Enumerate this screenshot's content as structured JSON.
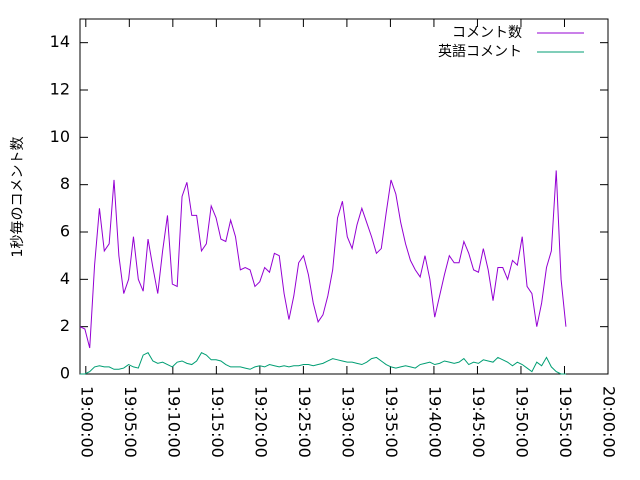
{
  "chart_data": {
    "type": "line",
    "ylabel": "1秒毎のコメント数",
    "x": [
      -40,
      -6.5,
      27,
      60.5,
      94,
      127.5,
      161,
      194.5,
      228,
      261.5,
      295,
      328.5,
      362,
      395.5,
      429,
      462.5,
      496,
      529.5,
      563,
      596.5,
      630,
      663.5,
      697,
      730.5,
      764,
      797.5,
      831,
      864.5,
      898,
      931.5,
      965,
      998.5,
      1032,
      1065.5,
      1099,
      1132.5,
      1166,
      1199.5,
      1233,
      1266.5,
      1300,
      1333.5,
      1367,
      1400.5,
      1434,
      1467.5,
      1501,
      1534.5,
      1568,
      1601.5,
      1635,
      1668.5,
      1702,
      1735.5,
      1769,
      1802.5,
      1836,
      1869.5,
      1903,
      1936.5,
      1970,
      2003.5,
      2037,
      2070.5,
      2104,
      2137.5,
      2171,
      2204.5,
      2238,
      2271.5,
      2305,
      2338.5,
      2372,
      2405.5,
      2439,
      2472.5,
      2506,
      2539.5,
      2573,
      2606.5,
      2640,
      2673.5,
      2707,
      2740.5,
      2774,
      2807.5,
      2841,
      2874.5,
      2908,
      2941.5,
      2975,
      3008.5,
      3042,
      3075.5,
      3109,
      3142.5,
      3176,
      3209.5,
      3243,
      3276.5,
      3310
    ],
    "series": [
      {
        "name": "コメント数",
        "color": "#9400d3",
        "values": [
          2.0,
          1.9,
          1.1,
          4.6,
          7.0,
          5.2,
          5.5,
          8.2,
          5.0,
          3.4,
          4.0,
          5.8,
          4.0,
          3.5,
          5.7,
          4.5,
          3.4,
          5.2,
          6.7,
          3.8,
          3.7,
          7.5,
          8.1,
          6.7,
          6.7,
          5.2,
          5.5,
          7.1,
          6.6,
          5.7,
          5.6,
          6.5,
          5.8,
          4.4,
          4.5,
          4.4,
          3.7,
          3.9,
          4.5,
          4.3,
          5.1,
          5.0,
          3.4,
          2.3,
          3.3,
          4.7,
          5.0,
          4.2,
          3.0,
          2.2,
          2.5,
          3.3,
          4.4,
          6.6,
          7.3,
          5.8,
          5.3,
          6.3,
          7.0,
          6.4,
          5.8,
          5.1,
          5.3,
          6.8,
          8.2,
          7.6,
          6.4,
          5.5,
          4.8,
          4.4,
          4.1,
          5.0,
          4.0,
          2.4,
          3.3,
          4.2,
          5.0,
          4.7,
          4.7,
          5.6,
          5.1,
          4.4,
          4.3,
          5.3,
          4.4,
          3.1,
          4.5,
          4.5,
          4.0,
          4.8,
          4.6,
          5.8,
          3.7,
          3.4,
          2.0,
          3.0,
          4.5,
          5.2,
          8.6,
          4.0,
          2.0
        ]
      },
      {
        "name": "英語コメント",
        "color": "#009e73",
        "values": [
          0,
          0,
          0.1,
          0.3,
          0.35,
          0.3,
          0.3,
          0.2,
          0.2,
          0.25,
          0.4,
          0.3,
          0.25,
          0.8,
          0.9,
          0.55,
          0.45,
          0.5,
          0.4,
          0.3,
          0.5,
          0.55,
          0.45,
          0.4,
          0.55,
          0.9,
          0.8,
          0.6,
          0.6,
          0.55,
          0.4,
          0.3,
          0.3,
          0.3,
          0.25,
          0.2,
          0.3,
          0.35,
          0.3,
          0.4,
          0.35,
          0.3,
          0.35,
          0.3,
          0.35,
          0.35,
          0.4,
          0.4,
          0.35,
          0.4,
          0.45,
          0.55,
          0.65,
          0.6,
          0.55,
          0.5,
          0.5,
          0.45,
          0.4,
          0.5,
          0.65,
          0.7,
          0.55,
          0.4,
          0.3,
          0.25,
          0.3,
          0.35,
          0.3,
          0.25,
          0.4,
          0.45,
          0.5,
          0.4,
          0.45,
          0.55,
          0.5,
          0.45,
          0.5,
          0.65,
          0.4,
          0.5,
          0.45,
          0.6,
          0.55,
          0.5,
          0.7,
          0.6,
          0.5,
          0.35,
          0.5,
          0.4,
          0.25,
          0.1,
          0.5,
          0.35,
          0.7,
          0.3,
          0.1,
          0,
          0
        ]
      }
    ],
    "xlim": [
      -40,
      3600
    ],
    "xticks": [
      {
        "value": 0,
        "label": "19:00:00"
      },
      {
        "value": 300,
        "label": "19:05:00"
      },
      {
        "value": 600,
        "label": "19:10:00"
      },
      {
        "value": 900,
        "label": "19:15:00"
      },
      {
        "value": 1200,
        "label": "19:20:00"
      },
      {
        "value": 1500,
        "label": "19:25:00"
      },
      {
        "value": 1800,
        "label": "19:30:00"
      },
      {
        "value": 2100,
        "label": "19:35:00"
      },
      {
        "value": 2400,
        "label": "19:40:00"
      },
      {
        "value": 2700,
        "label": "19:45:00"
      },
      {
        "value": 3000,
        "label": "19:50:00"
      },
      {
        "value": 3300,
        "label": "19:55:00"
      },
      {
        "value": 3600,
        "label": "20:00:00"
      }
    ],
    "ylim": [
      0,
      15
    ],
    "yticks": [
      0,
      2,
      4,
      6,
      8,
      10,
      12,
      14
    ],
    "legend": "top-right"
  }
}
